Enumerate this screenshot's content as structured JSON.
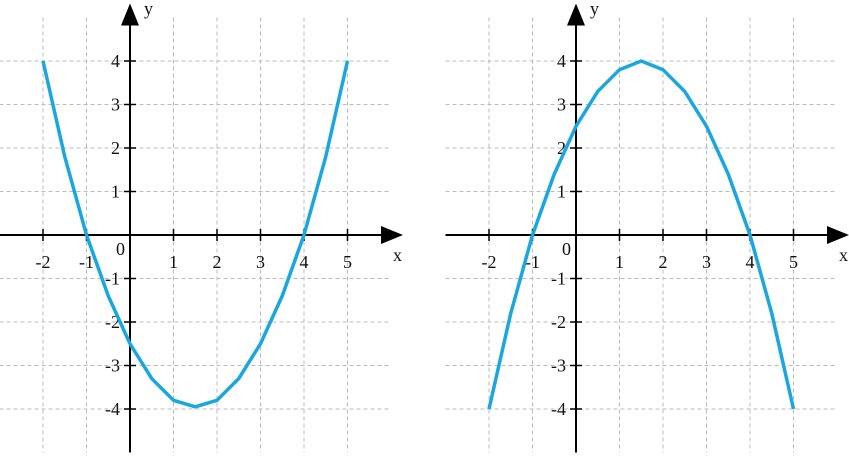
{
  "chart_data": [
    {
      "type": "line",
      "xlabel": "x",
      "ylabel": "y",
      "origin_label": "0",
      "xlim": [
        -3,
        6
      ],
      "ylim": [
        -5,
        5
      ],
      "xticks": [
        -2,
        -1,
        1,
        2,
        3,
        4,
        5
      ],
      "yticks": [
        -4,
        -3,
        -2,
        -1,
        1,
        2,
        3,
        4
      ],
      "grid": true,
      "x": [
        -2,
        -1.5,
        -1,
        -0.5,
        0,
        0.5,
        1,
        1.5,
        2,
        2.5,
        3,
        3.5,
        4,
        4.5,
        5
      ],
      "series": [
        {
          "color": "#1aa7e0",
          "values": [
            4,
            1.8,
            0,
            -1.4,
            -2.5,
            -3.3,
            -3.8,
            -3.95,
            -3.8,
            -3.3,
            -2.5,
            -1.4,
            0,
            1.8,
            4
          ]
        }
      ]
    },
    {
      "type": "line",
      "xlabel": "x",
      "ylabel": "y",
      "origin_label": "0",
      "xlim": [
        -3,
        6
      ],
      "ylim": [
        -5,
        5
      ],
      "xticks": [
        -2,
        -1,
        1,
        2,
        3,
        4,
        5
      ],
      "yticks": [
        -4,
        -3,
        -2,
        -1,
        1,
        2,
        3,
        4
      ],
      "grid": true,
      "x": [
        -2,
        -1.5,
        -1,
        -0.5,
        0,
        0.5,
        1,
        1.5,
        2,
        2.5,
        3,
        3.5,
        4,
        4.5,
        5
      ],
      "series": [
        {
          "color": "#1aa7e0",
          "values": [
            -4,
            -1.8,
            0,
            1.4,
            2.5,
            3.3,
            3.8,
            4,
            3.8,
            3.3,
            2.5,
            1.4,
            0,
            -1.8,
            -4
          ]
        }
      ]
    }
  ]
}
